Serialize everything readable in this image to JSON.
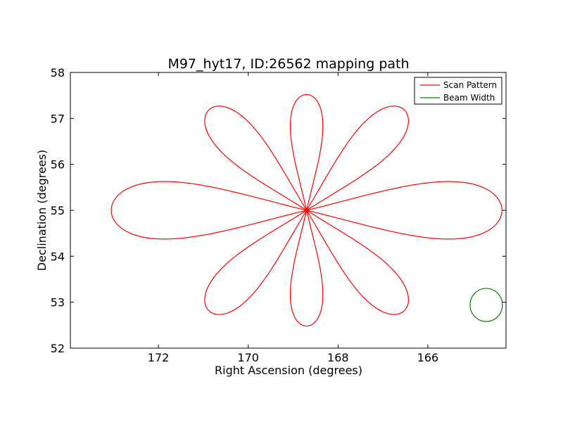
{
  "chart_data": {
    "type": "line",
    "title": "M97_hyt17, ID:26562 mapping path",
    "xlabel": "Right Ascension (degrees)",
    "ylabel": "Declination (degrees)",
    "xlim": [
      173.96,
      164.26
    ],
    "ylim": [
      52,
      58
    ],
    "x_inverted": true,
    "xticks": [
      172,
      170,
      168,
      166
    ],
    "xtick_labels": [
      "172",
      "170",
      "168",
      "166"
    ],
    "yticks": [
      52,
      53,
      54,
      55,
      56,
      57,
      58
    ],
    "ytick_labels": [
      "52",
      "53",
      "54",
      "55",
      "56",
      "57",
      "58"
    ],
    "grid": false,
    "legend_position": "top-right",
    "series": [
      {
        "name": "Scan Pattern",
        "color": "#ff0000",
        "kind": "rose-curve",
        "center": [
          168.7,
          55.0
        ],
        "petals": 8,
        "petal_radius_deg": 4.35,
        "petal_radius_vertical_deg": 2.52,
        "petal_angles_deg": [
          0,
          45,
          90,
          135,
          180,
          225,
          270,
          315
        ]
      },
      {
        "name": "Beam Width",
        "color": "#008000",
        "kind": "circle",
        "center": [
          164.7,
          52.94
        ],
        "radius_deg": 0.36
      }
    ]
  }
}
